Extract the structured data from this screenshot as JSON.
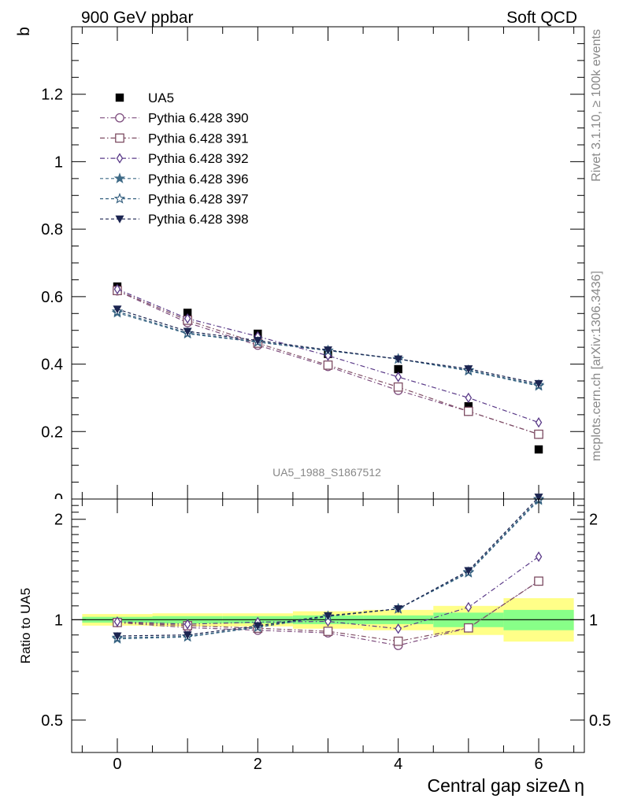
{
  "header": {
    "left": "900 GeV ppbar",
    "right": "Soft QCD"
  },
  "side_text": {
    "rivet": "Rivet 3.1.10, ≥ 100k events",
    "mcplots": "mcplots.cern.ch [arXiv:1306.3436]"
  },
  "analysis_label": "UA5_1988_S1867512",
  "chart_data": [
    {
      "type": "line",
      "panel": "main",
      "ylabel": "b",
      "xlabel": "Central gap sizeΔ η",
      "ylim": [
        0,
        1.4
      ],
      "xlim": [
        -0.65,
        6.65
      ],
      "yticks": [
        0.2,
        0.4,
        0.6,
        0.8,
        1,
        1.2
      ],
      "ytick_labels": [
        "0.2",
        "0.4",
        "0.6",
        "0.8",
        "1",
        "1.2"
      ],
      "ytick_partial_label": "0",
      "xticks": [
        0,
        2,
        4,
        6
      ],
      "xtick_labels": [
        "0",
        "2",
        "4",
        "6"
      ],
      "legend_position": "top-left",
      "x": [
        0,
        1,
        2,
        3,
        4,
        5,
        6
      ],
      "series": [
        {
          "name": "UA5",
          "marker": "filled-square",
          "color": "#000000",
          "dash": "none",
          "values": [
            0.63,
            0.552,
            0.49,
            0.43,
            0.385,
            0.275,
            0.147
          ]
        },
        {
          "name": "Pythia 6.428 390",
          "marker": "open-circle",
          "color": "#7e4d7e",
          "dash": "dashdot",
          "values": [
            0.617,
            0.523,
            0.456,
            0.393,
            0.322,
            0.26,
            0.192
          ]
        },
        {
          "name": "Pythia 6.428 391",
          "marker": "open-square",
          "color": "#7e4d63",
          "dash": "dashdot",
          "values": [
            0.618,
            0.53,
            0.462,
            0.397,
            0.332,
            0.26,
            0.192
          ]
        },
        {
          "name": "Pythia 6.428 392",
          "marker": "open-diamond",
          "color": "#5a3a88",
          "dash": "dashdot",
          "values": [
            0.622,
            0.535,
            0.482,
            0.425,
            0.362,
            0.3,
            0.227
          ]
        },
        {
          "name": "Pythia 6.428 396",
          "marker": "filled-star",
          "color": "#3f6b87",
          "dash": "dashed",
          "values": [
            0.552,
            0.49,
            0.465,
            0.44,
            0.415,
            0.38,
            0.335
          ]
        },
        {
          "name": "Pythia 6.428 397",
          "marker": "open-star",
          "color": "#2f5b7c",
          "dash": "dashed",
          "values": [
            0.556,
            0.492,
            0.466,
            0.44,
            0.415,
            0.382,
            0.338
          ]
        },
        {
          "name": "Pythia 6.428 398",
          "marker": "filled-triangle-down",
          "color": "#1b2450",
          "dash": "dashed",
          "values": [
            0.563,
            0.497,
            0.47,
            0.442,
            0.415,
            0.386,
            0.342
          ]
        }
      ]
    },
    {
      "type": "line",
      "panel": "ratio",
      "ylabel": "Ratio to UA5",
      "xlabel": "Central gap sizeΔ η",
      "scale": "log",
      "ylim": [
        0.4,
        2.3
      ],
      "yticks": [
        0.5,
        1,
        2
      ],
      "ytick_labels": [
        "0.5",
        "1",
        "2"
      ],
      "x": [
        0,
        1,
        2,
        3,
        4,
        5,
        6
      ],
      "reference_line": 1,
      "uncertainty_bands": [
        {
          "x_range": [
            -0.5,
            0.5
          ],
          "green": [
            0.98,
            1.02
          ],
          "yellow": [
            0.96,
            1.04
          ]
        },
        {
          "x_range": [
            0.5,
            1.5
          ],
          "green": [
            0.975,
            1.025
          ],
          "yellow": [
            0.955,
            1.045
          ]
        },
        {
          "x_range": [
            1.5,
            2.5
          ],
          "green": [
            0.975,
            1.025
          ],
          "yellow": [
            0.955,
            1.045
          ]
        },
        {
          "x_range": [
            2.5,
            3.5
          ],
          "green": [
            0.97,
            1.03
          ],
          "yellow": [
            0.94,
            1.06
          ]
        },
        {
          "x_range": [
            3.5,
            4.5
          ],
          "green": [
            0.97,
            1.03
          ],
          "yellow": [
            0.93,
            1.07
          ]
        },
        {
          "x_range": [
            4.5,
            5.5
          ],
          "green": [
            0.95,
            1.05
          ],
          "yellow": [
            0.9,
            1.1
          ]
        },
        {
          "x_range": [
            5.5,
            6.5
          ],
          "green": [
            0.93,
            1.07
          ],
          "yellow": [
            0.86,
            1.16
          ]
        }
      ],
      "series": [
        {
          "name": "Pythia 6.428 390",
          "values": [
            0.98,
            0.947,
            0.93,
            0.913,
            0.837,
            0.945,
            1.305
          ]
        },
        {
          "name": "Pythia 6.428 391",
          "values": [
            0.981,
            0.96,
            0.943,
            0.923,
            0.862,
            0.945,
            1.305
          ]
        },
        {
          "name": "Pythia 6.428 392",
          "values": [
            0.987,
            0.969,
            0.984,
            0.988,
            0.94,
            1.09,
            1.545
          ]
        },
        {
          "name": "Pythia 6.428 396",
          "values": [
            0.876,
            0.888,
            0.949,
            1.023,
            1.078,
            1.382,
            2.28
          ]
        },
        {
          "name": "Pythia 6.428 397",
          "values": [
            0.883,
            0.891,
            0.951,
            1.023,
            1.078,
            1.389,
            2.3
          ]
        },
        {
          "name": "Pythia 6.428 398",
          "values": [
            0.894,
            0.9,
            0.959,
            1.028,
            1.078,
            1.403,
            2.33
          ]
        }
      ]
    }
  ]
}
